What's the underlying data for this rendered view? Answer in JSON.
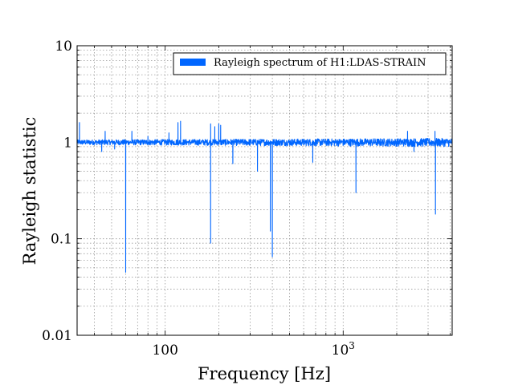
{
  "chart_data": {
    "type": "line",
    "xlabel": "Frequency [Hz]",
    "ylabel": "Rayleigh statistic",
    "x_scale": "log",
    "y_scale": "log",
    "xlim": [
      32,
      4096
    ],
    "ylim": [
      0.01,
      10
    ],
    "grid": true,
    "legend_position": "top-right",
    "x_tick_labels": [
      {
        "value": 100,
        "label": "100"
      },
      {
        "value": 1000,
        "label": "10",
        "exponent": "3"
      }
    ],
    "y_tick_labels": [
      {
        "value": 10,
        "label": "10"
      },
      {
        "value": 1,
        "label": "1"
      },
      {
        "value": 0.1,
        "label": "0.1"
      },
      {
        "value": 0.01,
        "label": "0.01"
      }
    ],
    "series": [
      {
        "name": "Rayleigh spectrum of H1:LDAS-STRAIN",
        "color": "#0066ff",
        "baseline": 1.0,
        "noise_low_hz": 0.06,
        "noise_high_hz": 0.1,
        "x_start": 32,
        "x_end": 4096,
        "dips": [
          {
            "x": 44,
            "y": 0.8
          },
          {
            "x": 52,
            "y": 0.85
          },
          {
            "x": 60,
            "y": 0.045
          },
          {
            "x": 180,
            "y": 0.09
          },
          {
            "x": 240,
            "y": 0.6
          },
          {
            "x": 330,
            "y": 0.5
          },
          {
            "x": 390,
            "y": 0.12
          },
          {
            "x": 400,
            "y": 0.065
          },
          {
            "x": 675,
            "y": 0.62
          },
          {
            "x": 1180,
            "y": 0.3
          },
          {
            "x": 2500,
            "y": 0.8
          },
          {
            "x": 3300,
            "y": 0.18
          }
        ],
        "peaks": [
          {
            "x": 33,
            "y": 1.6
          },
          {
            "x": 46,
            "y": 1.3
          },
          {
            "x": 65,
            "y": 1.3
          },
          {
            "x": 80,
            "y": 1.15
          },
          {
            "x": 105,
            "y": 1.25
          },
          {
            "x": 118,
            "y": 1.6
          },
          {
            "x": 122,
            "y": 1.65
          },
          {
            "x": 180,
            "y": 1.55
          },
          {
            "x": 190,
            "y": 1.45
          },
          {
            "x": 200,
            "y": 1.55
          },
          {
            "x": 205,
            "y": 1.5
          },
          {
            "x": 2300,
            "y": 1.3
          },
          {
            "x": 3280,
            "y": 1.3
          }
        ]
      }
    ]
  }
}
